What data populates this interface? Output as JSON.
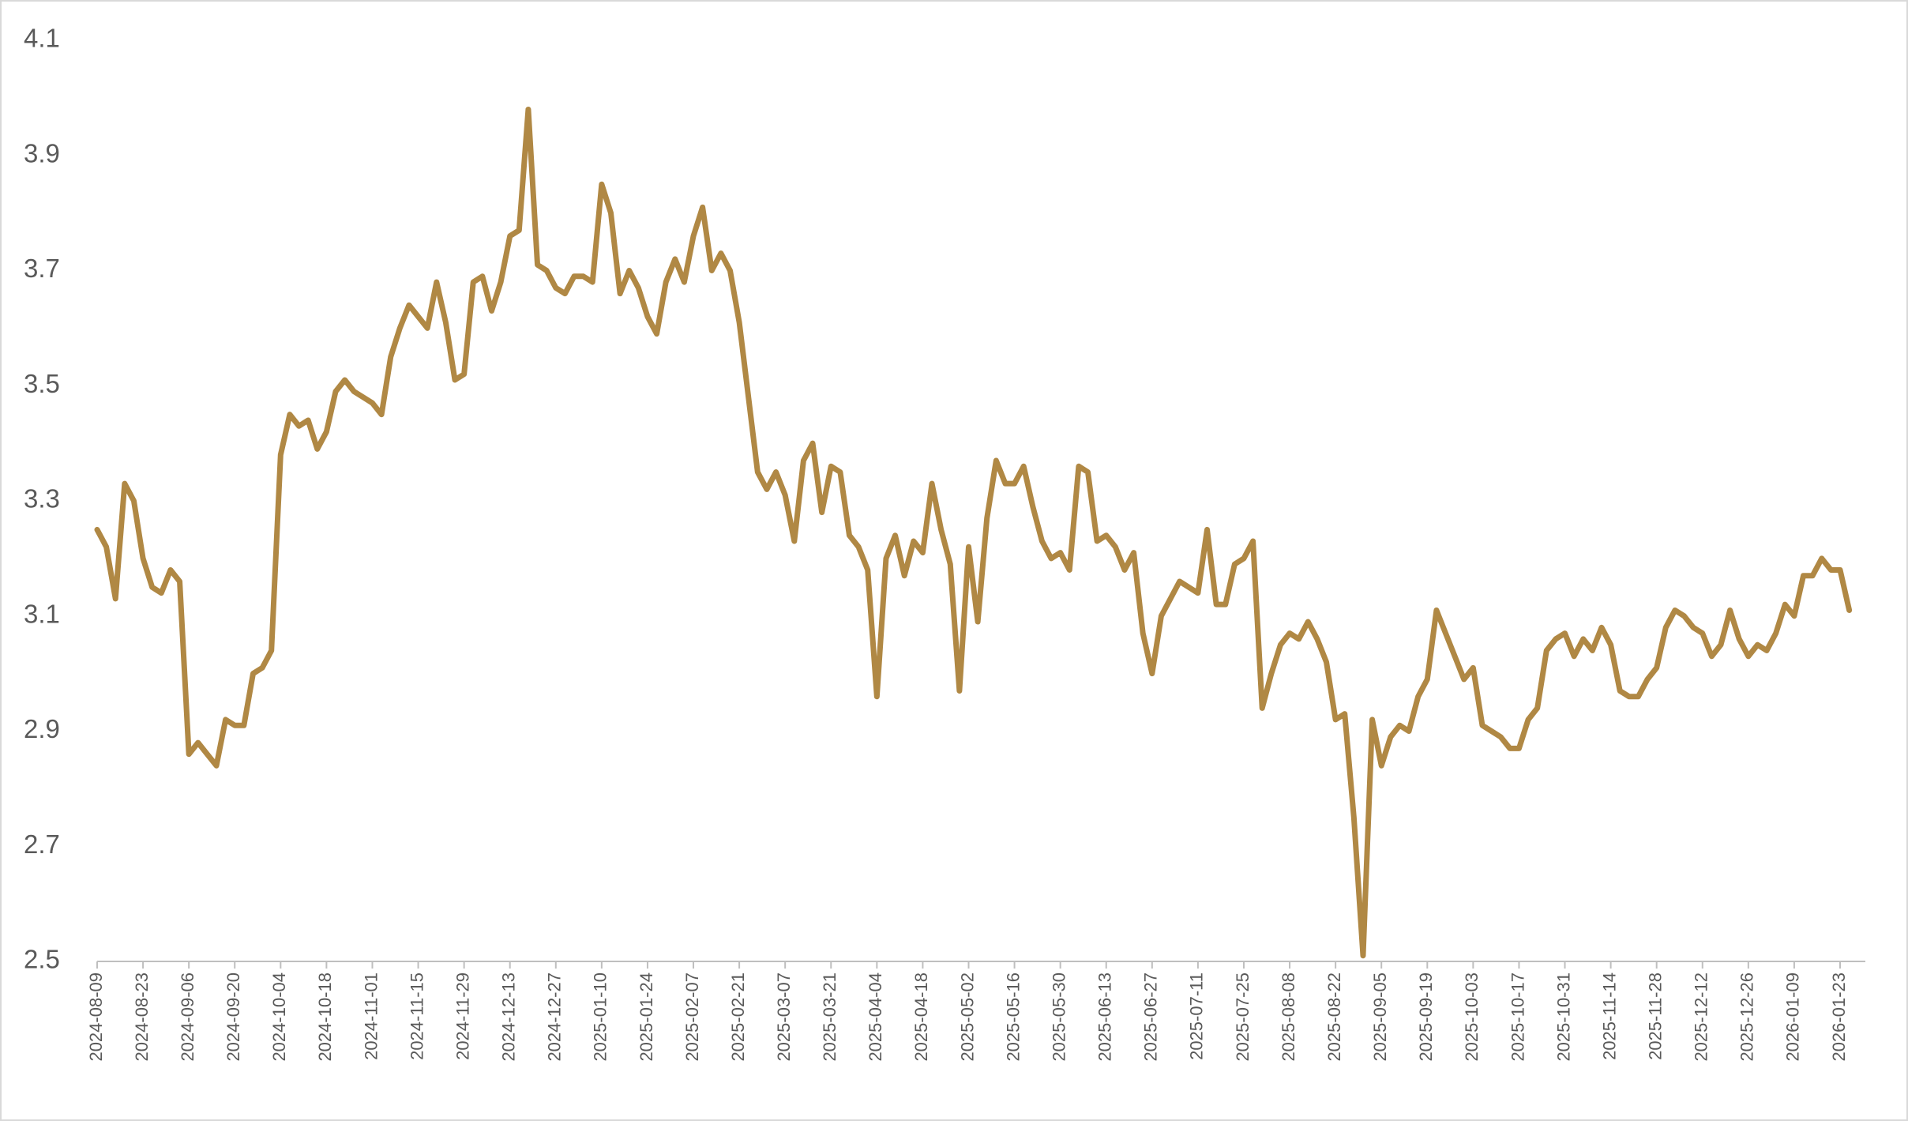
{
  "chart_data": {
    "type": "line",
    "color": "#b08844",
    "ylim": [
      2.5,
      4.1
    ],
    "yticks": [
      2.5,
      2.7,
      2.9,
      3.1,
      3.3,
      3.5,
      3.7,
      3.9,
      4.1
    ],
    "categories": [
      "2024-08-09",
      null,
      null,
      null,
      null,
      "2024-08-23",
      null,
      null,
      null,
      null,
      "2024-09-06",
      null,
      null,
      null,
      null,
      "2024-09-20",
      null,
      null,
      null,
      null,
      "2024-10-04",
      null,
      null,
      null,
      null,
      "2024-10-18",
      null,
      null,
      null,
      null,
      "2024-11-01",
      null,
      null,
      null,
      null,
      "2024-11-15",
      null,
      null,
      null,
      null,
      "2024-11-29",
      null,
      null,
      null,
      null,
      "2024-12-13",
      null,
      null,
      null,
      null,
      "2024-12-27",
      null,
      null,
      null,
      null,
      "2025-01-10",
      null,
      null,
      null,
      null,
      "2025-01-24",
      null,
      null,
      null,
      null,
      "2025-02-07",
      null,
      null,
      null,
      null,
      "2025-02-21",
      null,
      null,
      null,
      null,
      "2025-03-07",
      null,
      null,
      null,
      null,
      "2025-03-21",
      null,
      null,
      null,
      null,
      "2025-04-04",
      null,
      null,
      null,
      null,
      "2025-04-18",
      null,
      null,
      null,
      null,
      "2025-05-02",
      null,
      null,
      null,
      null,
      "2025-05-16",
      null,
      null,
      null,
      null,
      "2025-05-30",
      null,
      null,
      null,
      null,
      "2025-06-13",
      null,
      null,
      null,
      null,
      "2025-06-27",
      null,
      null,
      null,
      null,
      "2025-07-11",
      null,
      null,
      null,
      null,
      "2025-07-25",
      null,
      null,
      null,
      null,
      "2025-08-08",
      null,
      null,
      null,
      null,
      "2025-08-22",
      null,
      null,
      null,
      null,
      "2025-09-05",
      null,
      null,
      null,
      null,
      "2025-09-19",
      null,
      null,
      null,
      null,
      "2025-10-03",
      null,
      null,
      null,
      null,
      "2025-10-17",
      null,
      null,
      null,
      null,
      "2025-10-31",
      null,
      null,
      null,
      null,
      "2025-11-14",
      null,
      null,
      null,
      null,
      "2025-11-28",
      null,
      null,
      null,
      null,
      "2025-12-12",
      null,
      null,
      null,
      null,
      "2025-12-26",
      null,
      null,
      null,
      null,
      "2026-01-09",
      null,
      null,
      null,
      null,
      "2026-01-23",
      null
    ],
    "values": [
      3.25,
      3.22,
      3.13,
      3.33,
      3.3,
      3.2,
      3.15,
      3.14,
      3.18,
      3.16,
      2.86,
      2.88,
      2.86,
      2.84,
      2.92,
      2.91,
      2.91,
      3.0,
      3.01,
      3.04,
      3.38,
      3.45,
      3.43,
      3.44,
      3.39,
      3.42,
      3.49,
      3.51,
      3.49,
      3.48,
      3.47,
      3.45,
      3.55,
      3.6,
      3.64,
      3.62,
      3.6,
      3.68,
      3.61,
      3.51,
      3.52,
      3.68,
      3.69,
      3.63,
      3.68,
      3.76,
      3.77,
      3.98,
      3.71,
      3.7,
      3.67,
      3.66,
      3.69,
      3.69,
      3.68,
      3.85,
      3.8,
      3.66,
      3.7,
      3.67,
      3.62,
      3.59,
      3.68,
      3.72,
      3.68,
      3.76,
      3.81,
      3.7,
      3.73,
      3.7,
      3.61,
      3.48,
      3.35,
      3.32,
      3.35,
      3.31,
      3.23,
      3.37,
      3.4,
      3.28,
      3.36,
      3.35,
      3.24,
      3.22,
      3.18,
      2.96,
      3.2,
      3.24,
      3.17,
      3.23,
      3.21,
      3.33,
      3.25,
      3.19,
      2.97,
      3.22,
      3.09,
      3.27,
      3.37,
      3.33,
      3.33,
      3.36,
      3.29,
      3.23,
      3.2,
      3.21,
      3.18,
      3.36,
      3.35,
      3.23,
      3.24,
      3.22,
      3.18,
      3.21,
      3.07,
      3.0,
      3.1,
      3.13,
      3.16,
      3.15,
      3.14,
      3.25,
      3.12,
      3.12,
      3.19,
      3.2,
      3.23,
      2.94,
      3.0,
      3.05,
      3.07,
      3.06,
      3.09,
      3.06,
      3.02,
      2.92,
      2.93,
      2.75,
      2.51,
      2.92,
      2.84,
      2.89,
      2.91,
      2.9,
      2.96,
      2.99,
      3.11,
      3.07,
      3.03,
      2.99,
      3.01,
      2.91,
      2.9,
      2.89,
      2.87,
      2.87,
      2.92,
      2.94,
      3.04,
      3.06,
      3.07,
      3.03,
      3.06,
      3.04,
      3.08,
      3.05,
      2.97,
      2.96,
      2.96,
      2.99,
      3.01,
      3.08,
      3.11,
      3.1,
      3.08,
      3.07,
      3.03,
      3.05,
      3.11,
      3.06,
      3.03,
      3.05,
      3.04,
      3.07,
      3.12,
      3.1,
      3.17,
      3.17,
      3.2,
      3.18,
      3.18,
      3.11
    ]
  }
}
